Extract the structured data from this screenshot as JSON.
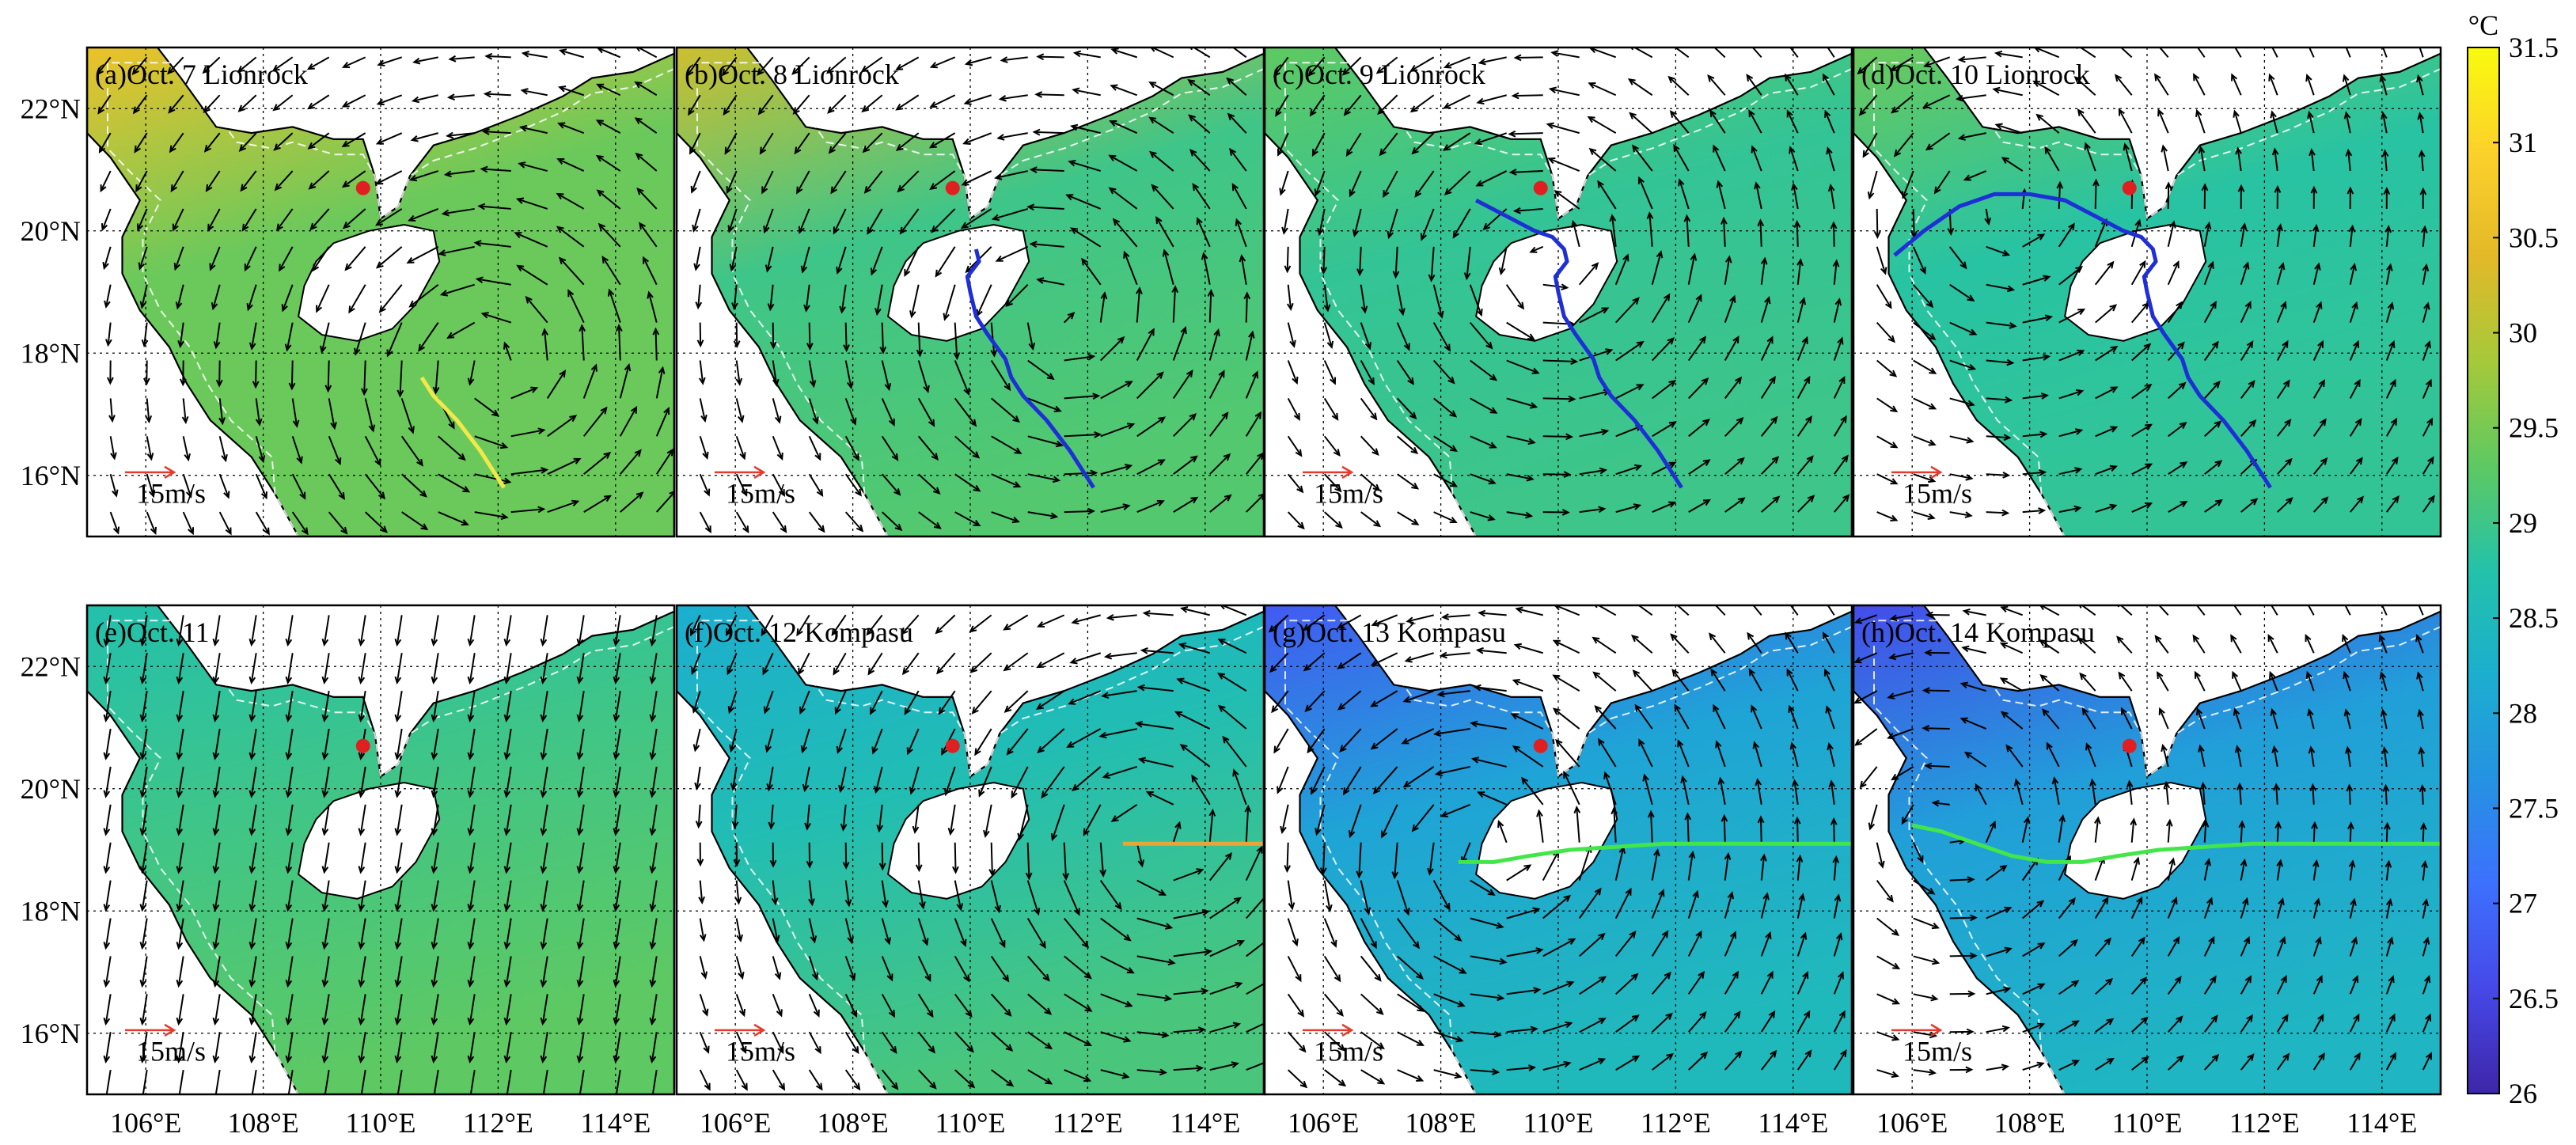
{
  "figure": {
    "colorbar": {
      "unit": "°C",
      "min": 26,
      "max": 31.5,
      "ticks": [
        "26",
        "26.5",
        "27",
        "27.5",
        "28",
        "28.5",
        "29",
        "29.5",
        "30",
        "30.5",
        "31",
        "31.5"
      ],
      "colormap": [
        "#3e26a8",
        "#4648e8",
        "#3d70fe",
        "#2592e2",
        "#1caecf",
        "#23c2aa",
        "#5ec962",
        "#a6c93a",
        "#e3b928",
        "#fcd12b",
        "#f9fb0e"
      ]
    },
    "x_ticks": [
      "106°E",
      "108°E",
      "110°E",
      "112°E",
      "114°E"
    ],
    "y_ticks": [
      "22°N",
      "20°N",
      "18°N",
      "16°N"
    ],
    "scale_arrow": {
      "label": "15m/s",
      "color": "#e53a2c"
    },
    "station_marker_color": "#e02020",
    "panels": [
      {
        "title": "(a)Oct. 7 Lionrock"
      },
      {
        "title": "(b)Oct. 8 Lionrock"
      },
      {
        "title": "(c)Oct. 9 Lionrock"
      },
      {
        "title": "(d)Oct. 10 Lionrock"
      },
      {
        "title": "(e)Oct. 11"
      },
      {
        "title": "(f)Oct. 12 Kompasu"
      },
      {
        "title": "(g)Oct. 13 Kompasu"
      },
      {
        "title": "(h)Oct. 14 Kompasu"
      }
    ],
    "panel_sst": [
      {
        "north": 30.6,
        "center": 29.4,
        "south": 29.4
      },
      {
        "north": 30.2,
        "center": 29.0,
        "south": 29.2
      },
      {
        "north": 29.3,
        "center": 28.9,
        "south": 29.0
      },
      {
        "north": 29.4,
        "center": 28.8,
        "south": 28.9
      },
      {
        "north": 28.7,
        "center": 29.0,
        "south": 29.3
      },
      {
        "north": 28.2,
        "center": 28.6,
        "south": 29.1
      },
      {
        "north": 26.8,
        "center": 28.0,
        "south": 28.5
      },
      {
        "north": 26.6,
        "center": 27.9,
        "south": 28.4
      }
    ]
  }
}
